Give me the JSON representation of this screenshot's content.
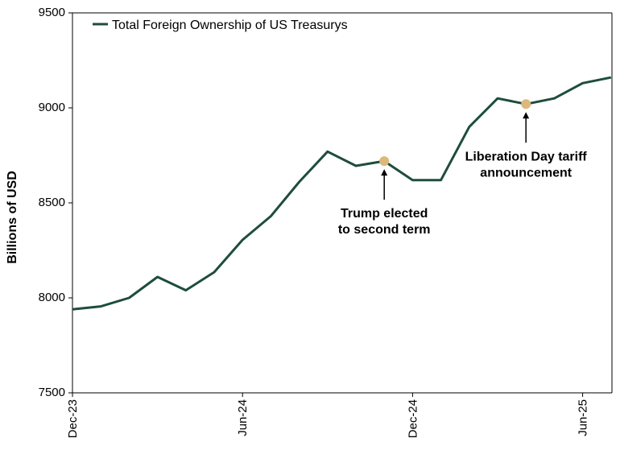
{
  "chart_data": {
    "type": "line",
    "title": "",
    "xlabel": "",
    "ylabel": "Billions of USD",
    "ylim": [
      7500,
      9500
    ],
    "yticks": [
      "7500",
      "8000",
      "8500",
      "9000",
      "9500"
    ],
    "xticks": [
      "Dec-23",
      "Jun-24",
      "Dec-24",
      "Jun-25"
    ],
    "x": [
      "Dec-23",
      "Jan-24",
      "Feb-24",
      "Mar-24",
      "Apr-24",
      "May-24",
      "Jun-24",
      "Jul-24",
      "Aug-24",
      "Sep-24",
      "Oct-24",
      "Nov-24",
      "Dec-24",
      "Jan-25",
      "Feb-25",
      "Mar-25",
      "Apr-25",
      "May-25",
      "Jun-25",
      "Jul-25"
    ],
    "series": [
      {
        "name": "Total Foreign Ownership of US Treasurys",
        "color": "#1e4d3c",
        "values": [
          7940,
          7955,
          8000,
          8110,
          8040,
          8135,
          8305,
          8430,
          8610,
          8770,
          8695,
          8720,
          8620,
          8620,
          8900,
          9050,
          9020,
          9050,
          9130,
          9160
        ]
      }
    ],
    "grid": false,
    "legend": "top-left",
    "annotations": [
      {
        "lines": [
          "Trump elected",
          "to second term"
        ],
        "x": "Nov-24",
        "marker_color": "#dcb97a"
      },
      {
        "lines": [
          "Liberation Day tariff",
          "announcement"
        ],
        "x": "Apr-25",
        "marker_color": "#dcb97a"
      }
    ]
  }
}
